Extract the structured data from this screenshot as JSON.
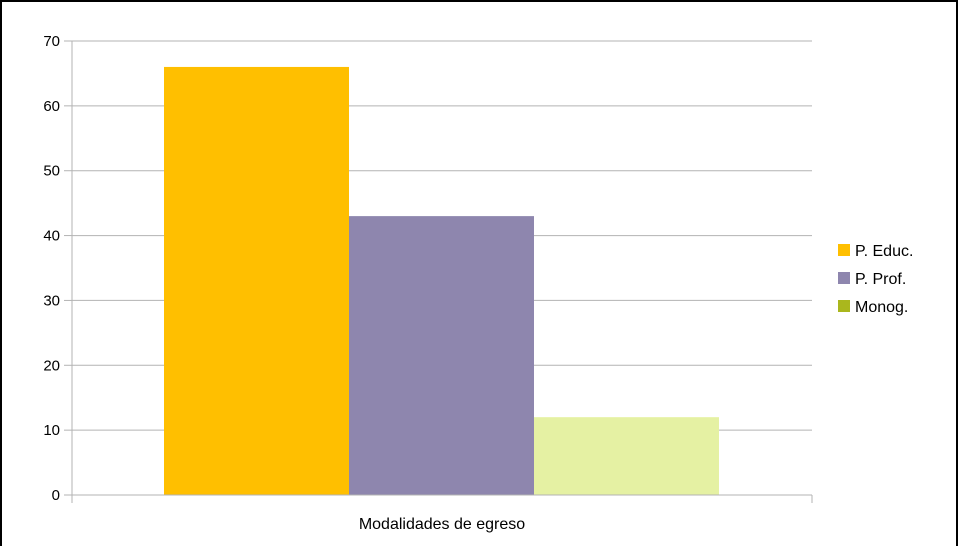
{
  "chart_data": {
    "type": "bar",
    "categories": [
      "Modalidades de egreso"
    ],
    "series": [
      {
        "name": "P. Educ.",
        "values": [
          66
        ],
        "color": "#ffbf00",
        "legend_color": "#ffbf00"
      },
      {
        "name": "P. Prof.",
        "values": [
          43
        ],
        "color": "#8e86ae",
        "legend_color": "#8e86ae"
      },
      {
        "name": "Monog.",
        "values": [
          12
        ],
        "color": "#e5f1a3",
        "legend_color": "#aab71d"
      }
    ],
    "y_ticks": [
      "0",
      "10",
      "20",
      "30",
      "40",
      "50",
      "60",
      "70"
    ],
    "ylim": [
      0,
      70
    ],
    "grid": true,
    "legend_position": "right"
  },
  "colors": {
    "gridline": "#b3b3b3",
    "axis": "#b3b3b3",
    "frame": "#000000"
  }
}
